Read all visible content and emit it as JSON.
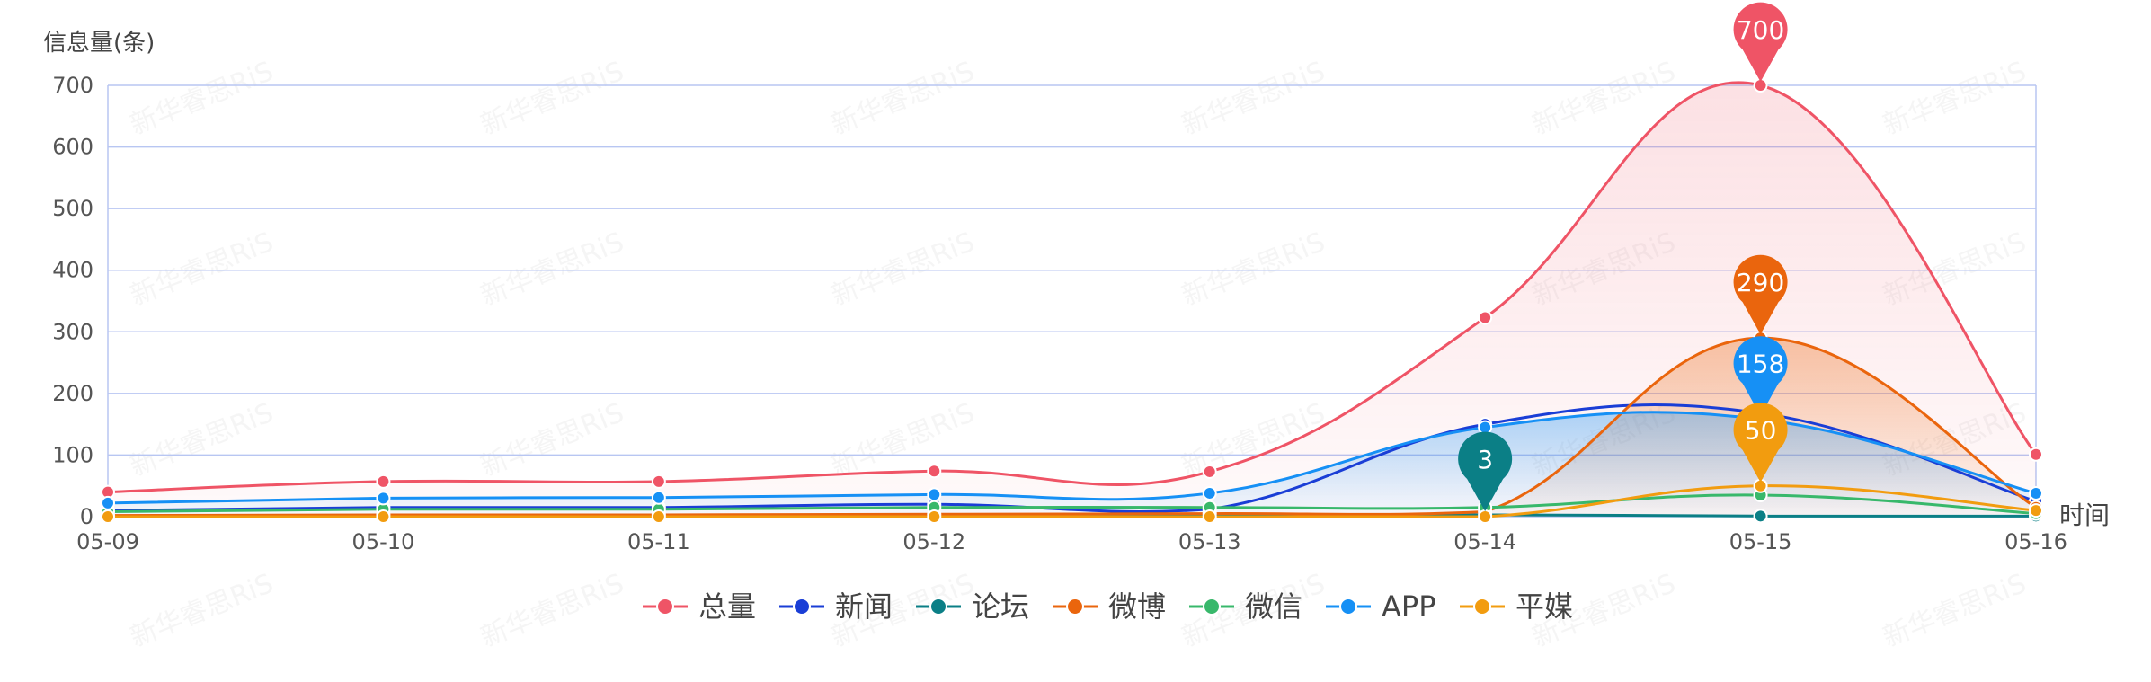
{
  "chart_data": {
    "type": "line",
    "ylabel": "信息量(条)",
    "xlabel": "时间",
    "ylim": [
      0,
      700
    ],
    "yticks": [
      0,
      100,
      200,
      300,
      400,
      500,
      600,
      700
    ],
    "categories": [
      "05-09",
      "05-10",
      "05-11",
      "05-12",
      "05-13",
      "05-14",
      "05-15",
      "05-16"
    ],
    "grid": true,
    "smooth": true,
    "legend_position": "bottom-center",
    "watermark": "新华睿思RiS",
    "series": [
      {
        "name": "总量",
        "color": "#ef5466",
        "area": true,
        "values": [
          40,
          57,
          57,
          74,
          73,
          323,
          700,
          101
        ],
        "max_marker": {
          "category": "05-15",
          "value": 700
        }
      },
      {
        "name": "新闻",
        "color": "#1a3ed6",
        "area": false,
        "values": [
          10,
          15,
          15,
          20,
          12,
          150,
          168,
          25
        ]
      },
      {
        "name": "论坛",
        "color": "#0b7f86",
        "area": false,
        "values": [
          1,
          1,
          1,
          1,
          1,
          3,
          1,
          1
        ],
        "max_marker": {
          "category": "05-14",
          "value": 3
        }
      },
      {
        "name": "微博",
        "color": "#ea650d",
        "area": true,
        "values": [
          2,
          3,
          3,
          4,
          5,
          8,
          290,
          15
        ],
        "max_marker": {
          "category": "05-15",
          "value": 290
        }
      },
      {
        "name": "微信",
        "color": "#38b86b",
        "area": false,
        "values": [
          8,
          12,
          12,
          15,
          15,
          15,
          35,
          5
        ]
      },
      {
        "name": "APP",
        "color": "#1690f5",
        "area": true,
        "values": [
          22,
          30,
          31,
          36,
          38,
          145,
          158,
          38
        ],
        "max_marker": {
          "category": "05-15",
          "value": 158
        }
      },
      {
        "name": "平媒",
        "color": "#f29c0f",
        "area": false,
        "values": [
          0,
          0,
          0,
          0,
          0,
          0,
          50,
          10
        ],
        "max_marker": {
          "category": "05-15",
          "value": 50
        }
      }
    ]
  }
}
